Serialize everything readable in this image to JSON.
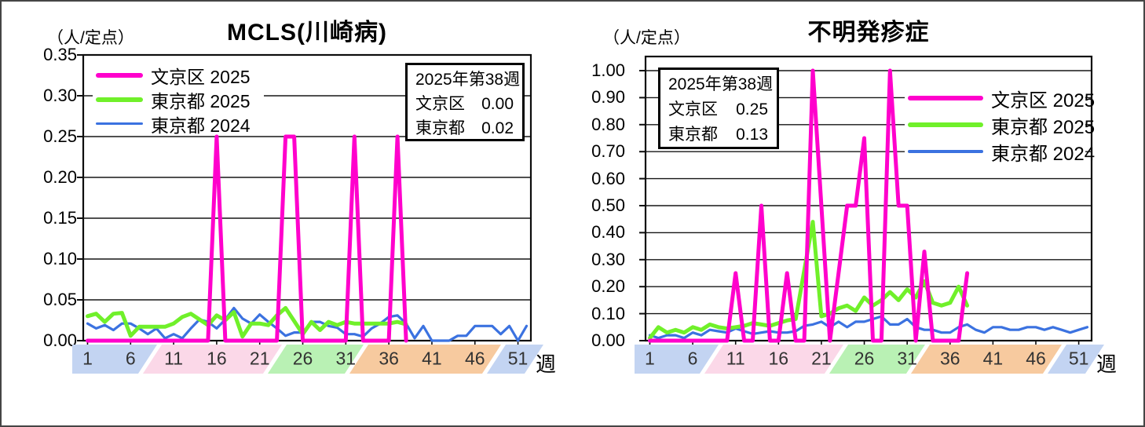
{
  "frame": {
    "bg": "#ffffff",
    "border_color": "#454545"
  },
  "report_week": "2025年第38週",
  "chart_data": [
    {
      "type": "line",
      "title": "MCLS(川崎病)",
      "ylabel": "（人/定点）",
      "xlabel": "週",
      "ylim": [
        0,
        0.35
      ],
      "grid": true,
      "legend_position": "upper-left",
      "ytick_labels": [
        "0.35",
        "0.30",
        "0.25",
        "0.20",
        "0.15",
        "0.10",
        "0.05",
        "0.00"
      ],
      "xtick_weeks": [
        1,
        6,
        11,
        16,
        21,
        26,
        31,
        36,
        41,
        46,
        51
      ],
      "weeks_total": 52,
      "info_box": {
        "heading": "2025年第38週",
        "rows": [
          {
            "label": "文京区",
            "value": "0.00"
          },
          {
            "label": "東京都",
            "value": "0.02"
          }
        ]
      },
      "series": [
        {
          "name": "文京区 2025",
          "color": "#ff00cc",
          "stroke_width": 5,
          "values": [
            0,
            0,
            0,
            0,
            0,
            0,
            0,
            0,
            0,
            0,
            0,
            0,
            0,
            0,
            0,
            0.25,
            0,
            0,
            0,
            0,
            0,
            0,
            0,
            0.25,
            0.25,
            0,
            0,
            0,
            0,
            0,
            0,
            0.25,
            0,
            0,
            0,
            0,
            0.25,
            0
          ]
        },
        {
          "name": "東京都 2025",
          "color": "#70f02a",
          "stroke_width": 5,
          "values": [
            0.03,
            0.033,
            0.023,
            0.033,
            0.034,
            0.006,
            0.017,
            0.017,
            0.017,
            0.017,
            0.021,
            0.029,
            0.033,
            0.026,
            0.019,
            0.031,
            0.025,
            0.035,
            0.005,
            0.021,
            0.021,
            0.019,
            0.031,
            0.04,
            0.024,
            0.008,
            0.023,
            0.013,
            0.023,
            0.019,
            0.023,
            0.021,
            0.021,
            0.021,
            0.021,
            0.021,
            0.023,
            0.02
          ]
        },
        {
          "name": "東京都 2024",
          "color": "#3b72e0",
          "stroke_width": 3.2,
          "values": [
            0.021,
            0.015,
            0.019,
            0.013,
            0.021,
            0.021,
            0.015,
            0.008,
            0.015,
            0.003,
            0.008,
            0.003,
            0.015,
            0.026,
            0.023,
            0.015,
            0.026,
            0.04,
            0.027,
            0.021,
            0.032,
            0.023,
            0.015,
            0.006,
            0.01,
            0.01,
            0.023,
            0.023,
            0.018,
            0.016,
            0.008,
            0.008,
            0.005,
            0.015,
            0.021,
            0.029,
            0.031,
            0.021,
            0.003,
            0.018,
            0,
            0,
            0,
            0.006,
            0.006,
            0.018,
            0.018,
            0.018,
            0.008,
            0.018,
            0,
            0.018
          ]
        }
      ],
      "season_bands": [
        {
          "color": "#c3d4f2",
          "from_week": -1,
          "to_week": 9.6
        },
        {
          "color": "#fbd8e8",
          "from_week": 9.6,
          "to_week": 24.1
        },
        {
          "color": "#b9f1b4",
          "from_week": 24.1,
          "to_week": 33.6
        },
        {
          "color": "#f7ca9f",
          "from_week": 33.6,
          "to_week": 49.6
        },
        {
          "color": "#c3d4f2",
          "from_week": 49.6,
          "to_week": 54.5
        }
      ]
    },
    {
      "type": "line",
      "title": "不明発疹症",
      "ylabel": "（人/定点）",
      "xlabel": "週",
      "ylim": [
        0,
        1.05
      ],
      "grid": true,
      "legend_position": "upper-right",
      "ytick_labels": [
        "1.00",
        "0.90",
        "0.80",
        "0.70",
        "0.60",
        "0.50",
        "0.40",
        "0.30",
        "0.20",
        "0.10",
        "0.00"
      ],
      "xtick_weeks": [
        1,
        6,
        11,
        16,
        21,
        26,
        31,
        36,
        41,
        46,
        51
      ],
      "weeks_total": 52,
      "info_box": {
        "heading": "2025年第38週",
        "rows": [
          {
            "label": "文京区",
            "value": "0.25"
          },
          {
            "label": "東京都",
            "value": "0.13"
          }
        ]
      },
      "series": [
        {
          "name": "文京区 2025",
          "color": "#ff00cc",
          "stroke_width": 5,
          "values": [
            0,
            0,
            0,
            0,
            0,
            0,
            0,
            0,
            0,
            0,
            0.25,
            0,
            0,
            0.5,
            0,
            0,
            0.25,
            0,
            0,
            1,
            0.5,
            0,
            0.25,
            0.5,
            0.5,
            0.75,
            0,
            0,
            1,
            0.5,
            0.5,
            0,
            0.33,
            0,
            0,
            0,
            0,
            0.25
          ]
        },
        {
          "name": "東京都 2025",
          "color": "#70f02a",
          "stroke_width": 5,
          "values": [
            0.01,
            0.05,
            0.03,
            0.04,
            0.03,
            0.05,
            0.04,
            0.06,
            0.05,
            0.045,
            0.05,
            0.055,
            0.065,
            0.06,
            0.055,
            0.065,
            0.075,
            0.08,
            0.26,
            0.44,
            0.09,
            0.1,
            0.12,
            0.13,
            0.11,
            0.16,
            0.13,
            0.15,
            0.18,
            0.15,
            0.19,
            0.16,
            0.22,
            0.14,
            0.13,
            0.14,
            0.2,
            0.13
          ]
        },
        {
          "name": "東京都 2024",
          "color": "#3b72e0",
          "stroke_width": 3.2,
          "values": [
            0.02,
            0.01,
            0.02,
            0.02,
            0.01,
            0.03,
            0.02,
            0.04,
            0.035,
            0.03,
            0.045,
            0.035,
            0.025,
            0.03,
            0.035,
            0.03,
            0.03,
            0.035,
            0.055,
            0.06,
            0.07,
            0.05,
            0.07,
            0.05,
            0.07,
            0.07,
            0.08,
            0.09,
            0.06,
            0.06,
            0.08,
            0.05,
            0.04,
            0.04,
            0.03,
            0.03,
            0.05,
            0.06,
            0.04,
            0.03,
            0.05,
            0.05,
            0.04,
            0.04,
            0.05,
            0.05,
            0.04,
            0.05,
            0.04,
            0.03,
            0.04,
            0.05
          ]
        }
      ],
      "season_bands": [
        {
          "color": "#c3d4f2",
          "from_week": -1,
          "to_week": 9.6
        },
        {
          "color": "#fbd8e8",
          "from_week": 9.6,
          "to_week": 24.1
        },
        {
          "color": "#b9f1b4",
          "from_week": 24.1,
          "to_week": 33.6
        },
        {
          "color": "#f7ca9f",
          "from_week": 33.6,
          "to_week": 49.6
        },
        {
          "color": "#c3d4f2",
          "from_week": 49.6,
          "to_week": 54.5
        }
      ]
    }
  ]
}
